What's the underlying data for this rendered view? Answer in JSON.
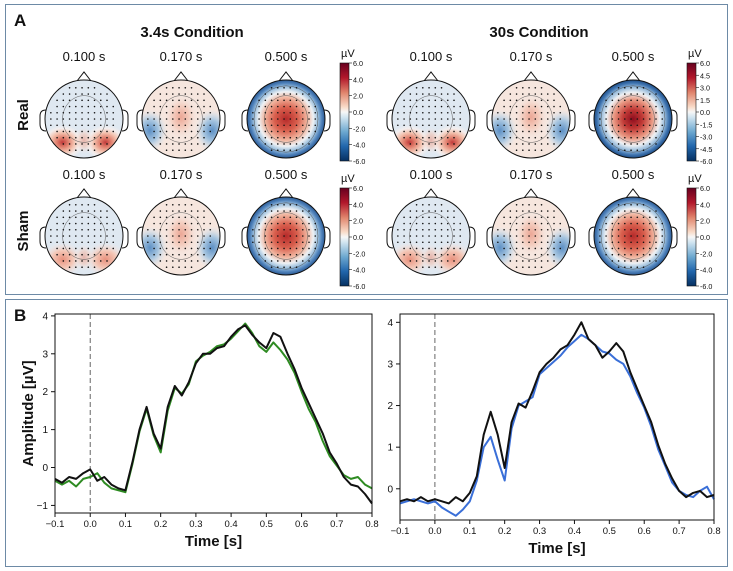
{
  "panel_a": {
    "label": "A",
    "conditions": [
      "3.4s Condition",
      "30s Condition"
    ],
    "rows": [
      "Real",
      "Sham"
    ],
    "times": [
      "0.100 s",
      "0.170 s",
      "0.500 s"
    ],
    "colorbar_unit": "µV",
    "colorbars": [
      {
        "ticks": [
          "6.0",
          "4.0",
          "2.0",
          "0.0",
          "-2.0",
          "-4.0",
          "-6.0"
        ],
        "values": [
          6,
          4,
          2,
          0,
          -2,
          -4,
          -6
        ]
      },
      {
        "ticks": [
          "6.0",
          "4.5",
          "3.0",
          "1.5",
          "0.0",
          "-1.5",
          "-3.0",
          "-4.5",
          "-6.0"
        ],
        "values": [
          6,
          4.5,
          3,
          1.5,
          0,
          -1.5,
          -3,
          -4.5,
          -6
        ]
      },
      {
        "ticks": [
          "6.0",
          "4.0",
          "2.0",
          "0.0",
          "-2.0",
          "-4.0",
          "-6.0"
        ],
        "values": [
          6,
          4,
          2,
          0,
          -2,
          -4,
          -6
        ]
      },
      {
        "ticks": [
          "6.0",
          "4.0",
          "2.0",
          "0.0",
          "-2.0",
          "-4.0",
          "-6.0"
        ],
        "values": [
          6,
          4,
          2,
          0,
          -2,
          -4,
          -6
        ]
      }
    ],
    "colors": {
      "pos": "#b2182b",
      "neg": "#2166ac",
      "mid": "#f7f7f7"
    }
  },
  "panel_b": {
    "label": "B"
  },
  "chart_data": [
    {
      "type": "line",
      "title": "",
      "xlabel": "Time [s]",
      "ylabel": "Amplitude [µV]",
      "xlim": [
        -0.1,
        0.8
      ],
      "ylim": [
        -1.2,
        4.05
      ],
      "xticks": [
        -0.1,
        0.0,
        0.1,
        0.2,
        0.3,
        0.4,
        0.5,
        0.6,
        0.7,
        0.8
      ],
      "xtick_labels": [
        "−0.1",
        "0.0",
        "0.1",
        "0.2",
        "0.3",
        "0.4",
        "0.5",
        "0.6",
        "0.7",
        "0.8"
      ],
      "yticks": [
        -1,
        0,
        1,
        2,
        3,
        4
      ],
      "ytick_labels": [
        "−1",
        "0",
        "1",
        "2",
        "3",
        "4"
      ],
      "vline_x": 0.0,
      "series": [
        {
          "name": "black",
          "color": "#111111",
          "x": [
            -0.1,
            -0.08,
            -0.06,
            -0.04,
            -0.02,
            0.0,
            0.02,
            0.04,
            0.06,
            0.08,
            0.1,
            0.12,
            0.14,
            0.16,
            0.18,
            0.2,
            0.22,
            0.24,
            0.26,
            0.28,
            0.3,
            0.32,
            0.34,
            0.36,
            0.38,
            0.4,
            0.42,
            0.44,
            0.46,
            0.48,
            0.5,
            0.52,
            0.54,
            0.56,
            0.58,
            0.6,
            0.62,
            0.64,
            0.66,
            0.68,
            0.7,
            0.72,
            0.74,
            0.76,
            0.78,
            0.8
          ],
          "y": [
            -0.3,
            -0.4,
            -0.25,
            -0.3,
            -0.15,
            -0.05,
            -0.35,
            -0.25,
            -0.45,
            -0.55,
            -0.6,
            0.15,
            1.0,
            1.6,
            0.9,
            0.5,
            1.6,
            2.15,
            1.9,
            2.25,
            2.75,
            3.0,
            3.0,
            3.15,
            3.2,
            3.45,
            3.65,
            3.75,
            3.5,
            3.3,
            3.15,
            3.55,
            3.45,
            3.0,
            2.6,
            2.1,
            1.7,
            1.3,
            0.9,
            0.4,
            0.1,
            -0.25,
            -0.45,
            -0.5,
            -0.7,
            -0.95
          ]
        },
        {
          "name": "green",
          "color": "#2e8b22",
          "x": [
            -0.1,
            -0.08,
            -0.06,
            -0.04,
            -0.02,
            0.0,
            0.02,
            0.04,
            0.06,
            0.08,
            0.1,
            0.12,
            0.14,
            0.16,
            0.18,
            0.2,
            0.22,
            0.24,
            0.26,
            0.28,
            0.3,
            0.32,
            0.34,
            0.36,
            0.38,
            0.4,
            0.42,
            0.44,
            0.46,
            0.48,
            0.5,
            0.52,
            0.54,
            0.56,
            0.58,
            0.6,
            0.62,
            0.64,
            0.66,
            0.68,
            0.7,
            0.72,
            0.74,
            0.76,
            0.78,
            0.8
          ],
          "y": [
            -0.35,
            -0.45,
            -0.35,
            -0.5,
            -0.3,
            -0.25,
            -0.15,
            -0.4,
            -0.55,
            -0.6,
            -0.65,
            0.1,
            0.95,
            1.55,
            0.85,
            0.4,
            1.5,
            2.1,
            1.95,
            2.2,
            2.8,
            2.95,
            3.05,
            3.2,
            3.25,
            3.4,
            3.6,
            3.8,
            3.55,
            3.2,
            3.05,
            3.3,
            3.1,
            2.85,
            2.5,
            2.0,
            1.55,
            1.2,
            0.7,
            0.3,
            0.05,
            -0.2,
            -0.3,
            -0.25,
            -0.45,
            -0.55
          ]
        }
      ]
    },
    {
      "type": "line",
      "title": "",
      "xlabel": "Time [s]",
      "ylabel": "",
      "xlim": [
        -0.1,
        0.8
      ],
      "ylim": [
        -0.75,
        4.2
      ],
      "xticks": [
        -0.1,
        0.0,
        0.1,
        0.2,
        0.3,
        0.4,
        0.5,
        0.6,
        0.7,
        0.8
      ],
      "xtick_labels": [
        "−0.1",
        "0.0",
        "0.1",
        "0.2",
        "0.3",
        "0.4",
        "0.5",
        "0.6",
        "0.7",
        "0.8"
      ],
      "yticks": [
        0,
        1,
        2,
        3,
        4
      ],
      "ytick_labels": [
        "0",
        "1",
        "2",
        "3",
        "4"
      ],
      "vline_x": 0.0,
      "series": [
        {
          "name": "black",
          "color": "#111111",
          "x": [
            -0.1,
            -0.08,
            -0.06,
            -0.04,
            -0.02,
            0.0,
            0.02,
            0.04,
            0.06,
            0.08,
            0.1,
            0.12,
            0.14,
            0.16,
            0.18,
            0.2,
            0.22,
            0.24,
            0.26,
            0.28,
            0.3,
            0.32,
            0.34,
            0.36,
            0.38,
            0.4,
            0.42,
            0.44,
            0.46,
            0.48,
            0.5,
            0.52,
            0.54,
            0.56,
            0.58,
            0.6,
            0.62,
            0.64,
            0.66,
            0.68,
            0.7,
            0.72,
            0.74,
            0.76,
            0.78,
            0.8
          ],
          "y": [
            -0.3,
            -0.25,
            -0.3,
            -0.2,
            -0.3,
            -0.25,
            -0.3,
            -0.35,
            -0.2,
            -0.3,
            -0.1,
            0.3,
            1.3,
            1.85,
            1.3,
            0.5,
            1.6,
            2.05,
            1.95,
            2.35,
            2.8,
            3.0,
            3.15,
            3.35,
            3.45,
            3.7,
            4.0,
            3.6,
            3.45,
            3.15,
            3.3,
            3.5,
            3.3,
            2.8,
            2.4,
            2.0,
            1.6,
            1.05,
            0.6,
            0.25,
            -0.05,
            -0.2,
            -0.1,
            -0.05,
            -0.2,
            -0.15
          ]
        },
        {
          "name": "blue",
          "color": "#3a6fd8",
          "x": [
            -0.1,
            -0.08,
            -0.06,
            -0.04,
            -0.02,
            0.0,
            0.02,
            0.04,
            0.06,
            0.08,
            0.1,
            0.12,
            0.14,
            0.16,
            0.18,
            0.2,
            0.22,
            0.24,
            0.26,
            0.28,
            0.3,
            0.32,
            0.34,
            0.36,
            0.38,
            0.4,
            0.42,
            0.44,
            0.46,
            0.48,
            0.5,
            0.52,
            0.54,
            0.56,
            0.58,
            0.6,
            0.62,
            0.64,
            0.66,
            0.68,
            0.7,
            0.72,
            0.74,
            0.76,
            0.78,
            0.8
          ],
          "y": [
            -0.35,
            -0.3,
            -0.25,
            -0.3,
            -0.35,
            -0.3,
            -0.45,
            -0.55,
            -0.65,
            -0.5,
            -0.3,
            0.2,
            1.0,
            1.25,
            0.7,
            0.2,
            1.45,
            2.0,
            2.1,
            2.2,
            2.75,
            2.9,
            3.05,
            3.2,
            3.4,
            3.55,
            3.7,
            3.6,
            3.45,
            3.3,
            3.25,
            3.1,
            3.0,
            2.7,
            2.3,
            1.95,
            1.5,
            0.95,
            0.55,
            0.15,
            -0.05,
            -0.15,
            -0.2,
            -0.05,
            0.05,
            -0.25
          ]
        }
      ]
    }
  ]
}
